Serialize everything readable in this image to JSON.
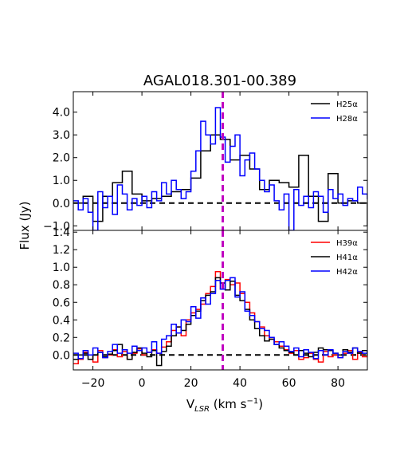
{
  "chart_data": {
    "type": "line",
    "title": "AGAL018.301-00.389",
    "xlabel": "V_LSR (km s^-1)",
    "ylabel": "Flux (Jy)",
    "xlim": [
      -28,
      92
    ],
    "x_ticks": [
      -20,
      0,
      20,
      40,
      60,
      80
    ],
    "x_tick_labels": [
      "−20",
      "0",
      "20",
      "40",
      "60",
      "80"
    ],
    "reference_velocity": 33,
    "reference_color": "#bf00bf",
    "panels": [
      {
        "ylim": [
          -1.2,
          4.9
        ],
        "y_ticks": [
          -1.0,
          0.0,
          1.0,
          2.0,
          3.0,
          4.0
        ],
        "y_tick_labels": [
          "−1.0",
          "0.0",
          "1.0",
          "2.0",
          "3.0",
          "4.0"
        ],
        "legend_position": "top-right",
        "series": [
          {
            "name": "H25α",
            "color": "#000000",
            "x": [
              -28,
              -24,
              -20,
              -16,
              -12,
              -8,
              -4,
              0,
              4,
              8,
              12,
              16,
              20,
              24,
              28,
              32,
              36,
              40,
              44,
              48,
              52,
              56,
              60,
              64,
              68,
              72,
              76,
              80,
              84,
              88,
              92
            ],
            "y": [
              0.0,
              0.3,
              -0.8,
              0.3,
              0.9,
              1.4,
              0.4,
              0.1,
              0.2,
              0.3,
              0.5,
              0.6,
              1.1,
              2.3,
              3.0,
              2.8,
              1.9,
              2.1,
              1.5,
              0.6,
              1.0,
              0.9,
              0.7,
              2.1,
              0.3,
              -0.8,
              1.3,
              0.0,
              0.1,
              0.0,
              -1.0
            ]
          },
          {
            "name": "H28α",
            "color": "#0000ff",
            "x": [
              -28,
              -26,
              -24,
              -22,
              -20,
              -18,
              -16,
              -14,
              -12,
              -10,
              -8,
              -6,
              -4,
              -2,
              0,
              2,
              4,
              6,
              8,
              10,
              12,
              14,
              16,
              18,
              20,
              22,
              24,
              26,
              28,
              30,
              32,
              34,
              36,
              38,
              40,
              42,
              44,
              46,
              48,
              50,
              52,
              54,
              56,
              58,
              60,
              62,
              64,
              66,
              68,
              70,
              72,
              74,
              76,
              78,
              80,
              82,
              84,
              86,
              88,
              90,
              92
            ],
            "y": [
              0.1,
              -0.3,
              0.2,
              -0.4,
              -1.2,
              0.5,
              -0.2,
              0.3,
              -0.5,
              0.8,
              0.4,
              -0.3,
              0.2,
              -0.1,
              0.3,
              -0.2,
              0.5,
              0.1,
              0.9,
              0.4,
              1.0,
              0.6,
              0.2,
              0.5,
              1.4,
              2.3,
              3.6,
              3.0,
              2.6,
              4.2,
              2.9,
              1.8,
              2.5,
              3.0,
              1.2,
              1.9,
              2.2,
              1.5,
              1.0,
              0.5,
              0.8,
              0.1,
              -0.3,
              0.4,
              -1.2,
              0.6,
              -0.1,
              0.3,
              -0.2,
              0.5,
              0.3,
              -0.4,
              0.6,
              0.2,
              0.4,
              -0.1,
              0.2,
              0.1,
              0.7,
              0.4,
              0.2
            ]
          }
        ]
      },
      {
        "ylim": [
          -0.17,
          1.42
        ],
        "y_ticks": [
          0.0,
          0.2,
          0.4,
          0.6,
          0.8,
          1.0,
          1.2,
          1.4
        ],
        "y_tick_labels": [
          "0.0",
          "0.2",
          "0.4",
          "0.6",
          "0.8",
          "1.0",
          "1.2",
          "1.4"
        ],
        "legend_position": "top-right",
        "series": [
          {
            "name": "H39α",
            "color": "#ff0000",
            "x": [
              -28,
              -26,
              -24,
              -22,
              -20,
              -18,
              -16,
              -14,
              -12,
              -10,
              -8,
              -6,
              -4,
              -2,
              0,
              2,
              4,
              6,
              8,
              10,
              12,
              14,
              16,
              18,
              20,
              22,
              24,
              26,
              28,
              30,
              32,
              34,
              36,
              38,
              40,
              42,
              44,
              46,
              48,
              50,
              52,
              54,
              56,
              58,
              60,
              62,
              64,
              66,
              68,
              70,
              72,
              74,
              76,
              78,
              80,
              82,
              84,
              86,
              88,
              90,
              92
            ],
            "y": [
              -0.1,
              -0.05,
              0.03,
              0.0,
              -0.08,
              0.05,
              -0.03,
              0.0,
              0.06,
              -0.02,
              0.04,
              -0.05,
              0.02,
              0.07,
              0.0,
              0.03,
              0.06,
              0.02,
              0.09,
              0.15,
              0.28,
              0.32,
              0.22,
              0.4,
              0.48,
              0.52,
              0.58,
              0.7,
              0.78,
              0.95,
              0.75,
              0.86,
              0.8,
              0.82,
              0.7,
              0.6,
              0.48,
              0.38,
              0.32,
              0.22,
              0.18,
              0.15,
              0.1,
              0.06,
              0.02,
              0.05,
              -0.05,
              -0.03,
              0.02,
              -0.05,
              -0.08,
              0.04,
              -0.02,
              0.0,
              -0.03,
              0.02,
              0.05,
              -0.05,
              0.03,
              -0.02,
              0.0
            ]
          },
          {
            "name": "H41α",
            "color": "#000000",
            "x": [
              -28,
              -26,
              -24,
              -22,
              -20,
              -18,
              -16,
              -14,
              -12,
              -10,
              -8,
              -6,
              -4,
              -2,
              0,
              2,
              4,
              6,
              8,
              10,
              12,
              14,
              16,
              18,
              20,
              22,
              24,
              26,
              28,
              30,
              32,
              34,
              36,
              38,
              40,
              42,
              44,
              46,
              48,
              50,
              52,
              54,
              56,
              58,
              60,
              62,
              64,
              66,
              68,
              70,
              72,
              74,
              76,
              78,
              80,
              82,
              84,
              86,
              88,
              90,
              92
            ],
            "y": [
              -0.05,
              0.0,
              0.02,
              -0.05,
              0.0,
              0.03,
              -0.02,
              0.01,
              0.05,
              0.12,
              0.06,
              -0.05,
              0.03,
              0.08,
              0.02,
              -0.02,
              0.05,
              -0.12,
              0.04,
              0.1,
              0.22,
              0.32,
              0.28,
              0.35,
              0.45,
              0.5,
              0.62,
              0.68,
              0.72,
              0.88,
              0.82,
              0.74,
              0.84,
              0.68,
              0.62,
              0.52,
              0.4,
              0.3,
              0.22,
              0.16,
              0.18,
              0.12,
              0.08,
              0.05,
              0.03,
              0.0,
              0.05,
              0.02,
              -0.02,
              0.03,
              0.08,
              0.06,
              0.05,
              0.02,
              0.0,
              0.06,
              0.03,
              0.08,
              0.02,
              0.05,
              0.0
            ]
          },
          {
            "name": "H42α",
            "color": "#0000ff",
            "x": [
              -28,
              -26,
              -24,
              -22,
              -20,
              -18,
              -16,
              -14,
              -12,
              -10,
              -8,
              -6,
              -4,
              -2,
              0,
              2,
              4,
              6,
              8,
              10,
              12,
              14,
              16,
              18,
              20,
              22,
              24,
              26,
              28,
              30,
              32,
              34,
              36,
              38,
              40,
              42,
              44,
              46,
              48,
              50,
              52,
              54,
              56,
              58,
              60,
              62,
              64,
              66,
              68,
              70,
              72,
              74,
              76,
              78,
              80,
              82,
              84,
              86,
              88,
              90,
              92
            ],
            "y": [
              0.02,
              -0.04,
              0.05,
              0.0,
              0.08,
              0.03,
              -0.03,
              0.04,
              0.12,
              0.02,
              0.06,
              0.02,
              0.1,
              0.05,
              0.08,
              0.03,
              0.15,
              0.02,
              0.18,
              0.22,
              0.35,
              0.25,
              0.4,
              0.38,
              0.55,
              0.42,
              0.65,
              0.58,
              0.7,
              0.85,
              0.75,
              0.85,
              0.88,
              0.66,
              0.72,
              0.5,
              0.45,
              0.38,
              0.3,
              0.28,
              0.2,
              0.12,
              0.15,
              0.1,
              0.04,
              0.08,
              -0.02,
              0.06,
              0.03,
              -0.04,
              0.05,
              0.0,
              0.06,
              0.02,
              -0.03,
              0.04,
              0.02,
              0.08,
              0.04,
              0.02,
              0.05
            ]
          }
        ]
      }
    ]
  }
}
